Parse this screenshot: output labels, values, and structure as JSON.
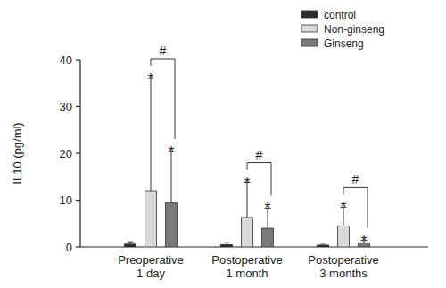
{
  "chart_data": {
    "type": "bar",
    "y_label": "IL10 (pg/ml)",
    "categories": [
      "Preoperative\n1 day",
      "Postoperative\n1 month",
      "Postoperative\n3 months"
    ],
    "series": [
      {
        "name": "control",
        "color": "#2b2b2b",
        "values": [
          0.6,
          0.5,
          0.4
        ],
        "errors": [
          0.5,
          0.4,
          0.4
        ]
      },
      {
        "name": "Non-ginseng",
        "color": "#d9d9d9",
        "values": [
          12,
          6.3,
          4.5
        ],
        "errors": [
          24,
          7.5,
          4
        ],
        "annotations": [
          "*",
          "*",
          "*"
        ]
      },
      {
        "name": "Ginseng",
        "color": "#7a7a7a",
        "values": [
          9.4,
          4,
          0.9
        ],
        "errors": [
          11,
          4.3,
          0.5
        ],
        "annotations": [
          "*",
          "*",
          "*"
        ]
      }
    ],
    "comparison_labels": [
      "#",
      "#",
      "#"
    ],
    "ylim": [
      0,
      40
    ],
    "yticks": [
      0,
      10,
      20,
      30,
      40
    ],
    "grid": false,
    "legend": "upper right"
  }
}
